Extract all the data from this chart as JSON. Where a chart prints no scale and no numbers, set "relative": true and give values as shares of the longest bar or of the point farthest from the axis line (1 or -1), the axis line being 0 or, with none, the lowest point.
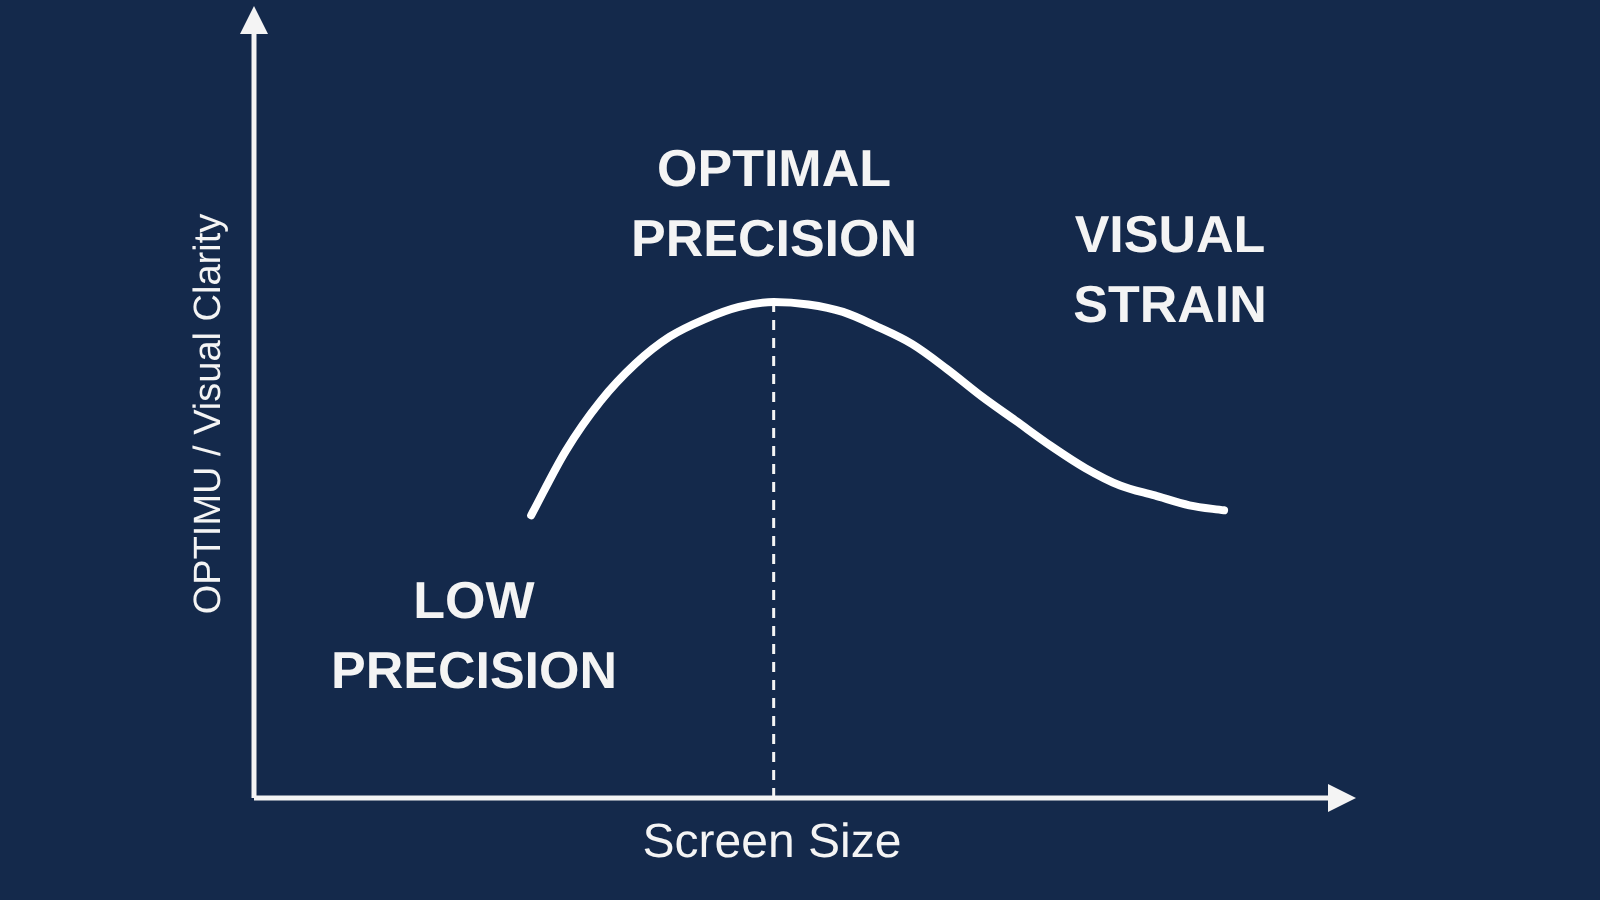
{
  "chart_data": {
    "type": "line",
    "xlabel": "Screen Size",
    "ylabel": "OPTIMU / Visual Clarity",
    "categories": [
      null,
      null,
      null,
      null,
      null,
      null,
      null,
      null,
      null,
      null,
      null,
      null,
      null,
      null,
      null,
      null,
      null,
      null,
      null,
      null,
      null,
      null,
      null,
      null,
      null,
      null,
      null,
      null,
      null,
      null,
      null,
      null
    ],
    "series": [
      {
        "color": "#ffffff",
        "values": [
          null,
          null,
          null,
          null,
          null,
          null,
          null,
          null,
          0.57,
          0.7,
          0.8,
          0.875,
          0.93,
          0.965,
          0.99,
          1,
          0.995,
          0.98,
          0.95,
          0.915,
          0.865,
          0.81,
          0.76,
          0.71,
          0.665,
          0.63,
          0.61,
          0.59,
          0.58,
          null,
          null,
          null
        ]
      }
    ],
    "relative": true,
    "marker": "none",
    "annotations": [
      "LOW PRECISION",
      "OPTIMAL PRECISION",
      "VISUAL STRAIN"
    ]
  }
}
